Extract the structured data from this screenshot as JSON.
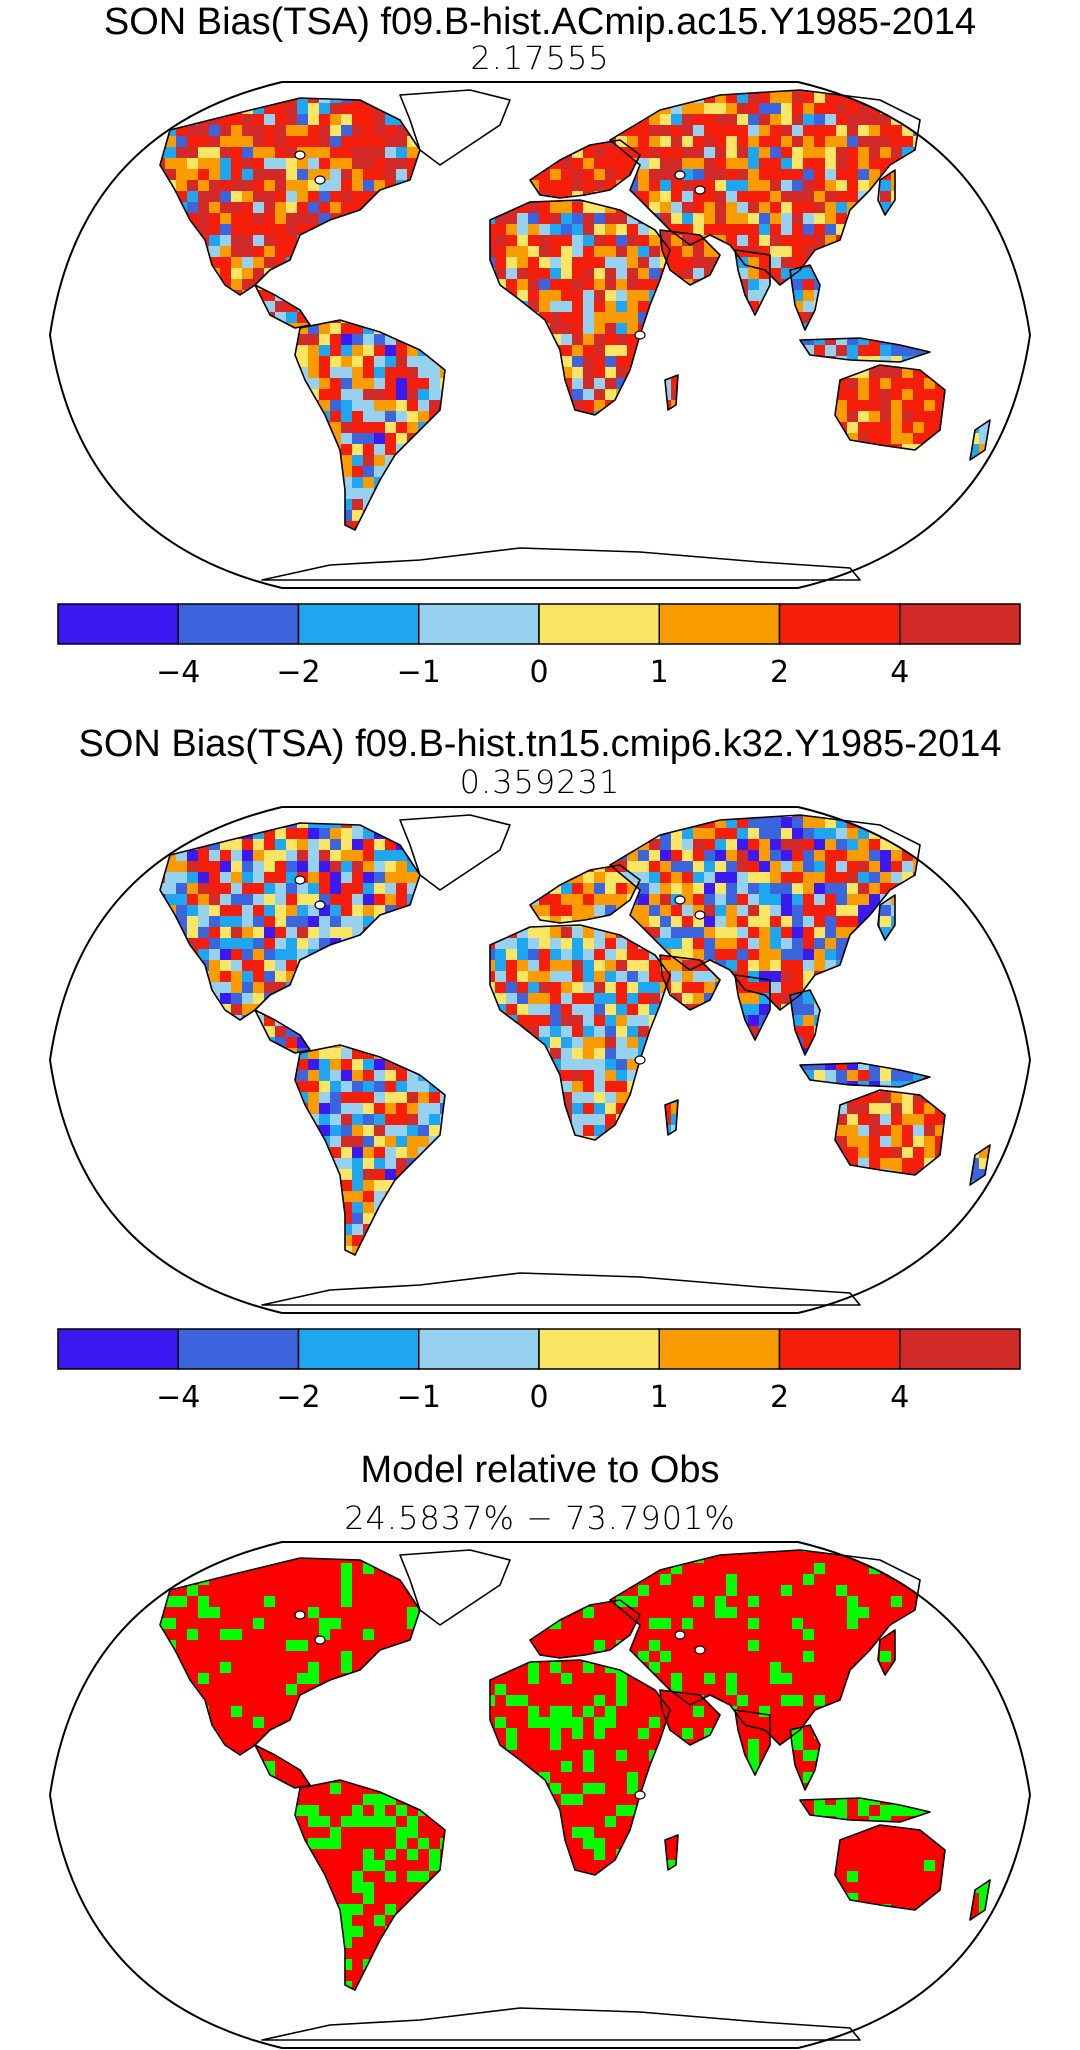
{
  "panels": [
    {
      "title": "SON Bias(TSA) f09.B-hist.ACmip.ac15.Y1985-2014",
      "value": "2.17555",
      "scheme": "bias_warm"
    },
    {
      "title": "SON Bias(TSA) f09.B-hist.tn15.cmip6.k32.Y1985-2014",
      "value": "0.359231",
      "scheme": "bias_mixed"
    },
    {
      "title": "Model relative to Obs",
      "value": "24.5837% − 73.7901%",
      "scheme": "relative"
    }
  ],
  "colorbar": {
    "colors": [
      "#3a1af0",
      "#3c64dc",
      "#1ea6f0",
      "#96d2f0",
      "#fae664",
      "#fa9c00",
      "#f51e0a",
      "#d22a28"
    ],
    "labels": [
      "−4",
      "−2",
      "−1",
      "0",
      "1",
      "2",
      "4"
    ]
  },
  "relative_colors": {
    "model_worse": "#ff0000",
    "model_better": "#00ff00"
  }
}
